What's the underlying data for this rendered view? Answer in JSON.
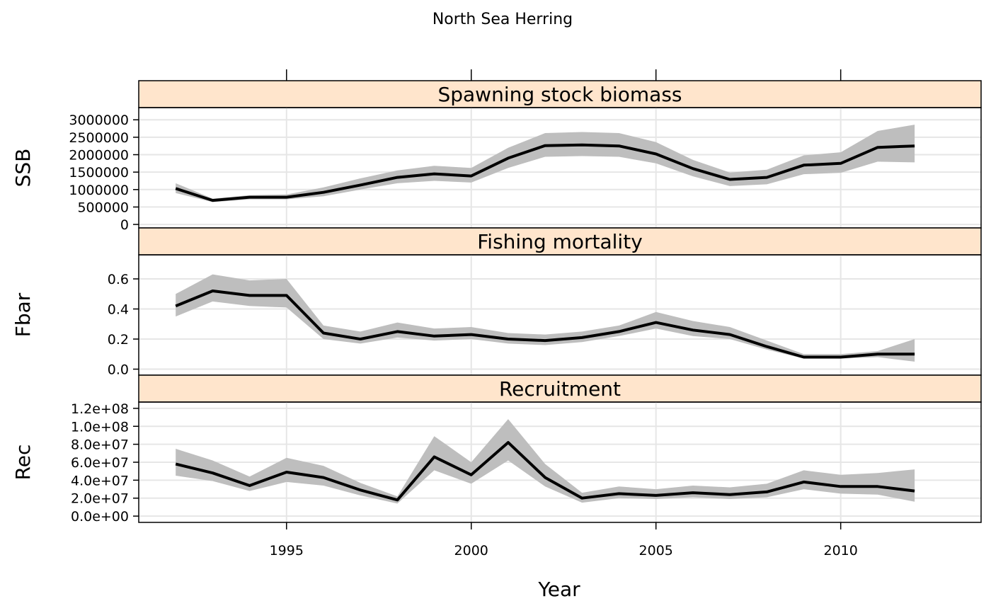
{
  "chart_data": {
    "type": "line",
    "title": "North Sea Herring",
    "xlabel": "Year",
    "xlim": [
      1991,
      2013.8
    ],
    "x_ticks": [
      1995,
      2000,
      2005,
      2010
    ],
    "grid": true,
    "years": [
      1992,
      1993,
      1994,
      1995,
      1996,
      1997,
      1998,
      1999,
      2000,
      2001,
      2002,
      2003,
      2004,
      2005,
      2006,
      2007,
      2008,
      2009,
      2010,
      2011,
      2012
    ],
    "panels": [
      {
        "id": "ssb",
        "strip": "Spawning stock biomass",
        "ylabel": "SSB",
        "ylim": [
          -100000,
          3350000
        ],
        "y_ticks": [
          0,
          500000,
          1000000,
          1500000,
          2000000,
          2500000,
          3000000
        ],
        "y_tick_labels": [
          "0",
          "500000",
          "1000000",
          "1500000",
          "2000000",
          "2500000",
          "3000000"
        ],
        "values": [
          1030000,
          690000,
          780000,
          780000,
          920000,
          1130000,
          1350000,
          1450000,
          1390000,
          1900000,
          2260000,
          2280000,
          2250000,
          2020000,
          1600000,
          1290000,
          1350000,
          1700000,
          1750000,
          2210000,
          2250000
        ],
        "lower": [
          900000,
          640000,
          720000,
          720000,
          810000,
          1000000,
          1180000,
          1250000,
          1200000,
          1620000,
          1940000,
          1960000,
          1940000,
          1750000,
          1380000,
          1100000,
          1150000,
          1440000,
          1480000,
          1800000,
          1780000
        ],
        "upper": [
          1180000,
          740000,
          840000,
          860000,
          1060000,
          1320000,
          1550000,
          1680000,
          1620000,
          2200000,
          2620000,
          2650000,
          2620000,
          2360000,
          1850000,
          1490000,
          1570000,
          1980000,
          2070000,
          2680000,
          2860000
        ]
      },
      {
        "id": "fbar",
        "strip": "Fishing mortality",
        "ylabel": "Fbar",
        "ylim": [
          -0.04,
          0.76
        ],
        "y_ticks": [
          0.0,
          0.2,
          0.4,
          0.6
        ],
        "y_tick_labels": [
          "0.0",
          "0.2",
          "0.4",
          "0.6"
        ],
        "values": [
          0.42,
          0.52,
          0.49,
          0.49,
          0.24,
          0.2,
          0.25,
          0.22,
          0.23,
          0.2,
          0.19,
          0.21,
          0.25,
          0.31,
          0.26,
          0.23,
          0.15,
          0.08,
          0.08,
          0.1,
          0.1
        ],
        "lower": [
          0.35,
          0.45,
          0.42,
          0.41,
          0.2,
          0.17,
          0.21,
          0.19,
          0.2,
          0.17,
          0.16,
          0.18,
          0.22,
          0.27,
          0.22,
          0.2,
          0.13,
          0.07,
          0.07,
          0.08,
          0.05
        ],
        "upper": [
          0.5,
          0.63,
          0.59,
          0.6,
          0.29,
          0.25,
          0.31,
          0.27,
          0.28,
          0.24,
          0.23,
          0.25,
          0.29,
          0.38,
          0.32,
          0.28,
          0.19,
          0.1,
          0.1,
          0.12,
          0.2
        ]
      },
      {
        "id": "rec",
        "strip": "Recruitment",
        "ylabel": "Rec",
        "ylim": [
          -7000000,
          127000000
        ],
        "y_ticks": [
          0,
          20000000,
          40000000,
          60000000,
          80000000,
          100000000,
          120000000
        ],
        "y_tick_labels": [
          "0.0e+00",
          "2.0e+07",
          "4.0e+07",
          "6.0e+07",
          "8.0e+07",
          "1.0e+08",
          "1.2e+08"
        ],
        "values": [
          58000000,
          48000000,
          34000000,
          49000000,
          43000000,
          29000000,
          18000000,
          66000000,
          46000000,
          82000000,
          43000000,
          20000000,
          25000000,
          23000000,
          26000000,
          24000000,
          27000000,
          38000000,
          33000000,
          33000000,
          28000000
        ],
        "lower": [
          45000000,
          39000000,
          28000000,
          38000000,
          34000000,
          23000000,
          14000000,
          51000000,
          36000000,
          62000000,
          33000000,
          15000000,
          20000000,
          19000000,
          21000000,
          19000000,
          21000000,
          30000000,
          25000000,
          24000000,
          16000000
        ],
        "upper": [
          75000000,
          62000000,
          44000000,
          65000000,
          56000000,
          37000000,
          22000000,
          89000000,
          60000000,
          108000000,
          58000000,
          26000000,
          33000000,
          30000000,
          34000000,
          32000000,
          36000000,
          51000000,
          46000000,
          48000000,
          52000000
        ]
      }
    ]
  }
}
